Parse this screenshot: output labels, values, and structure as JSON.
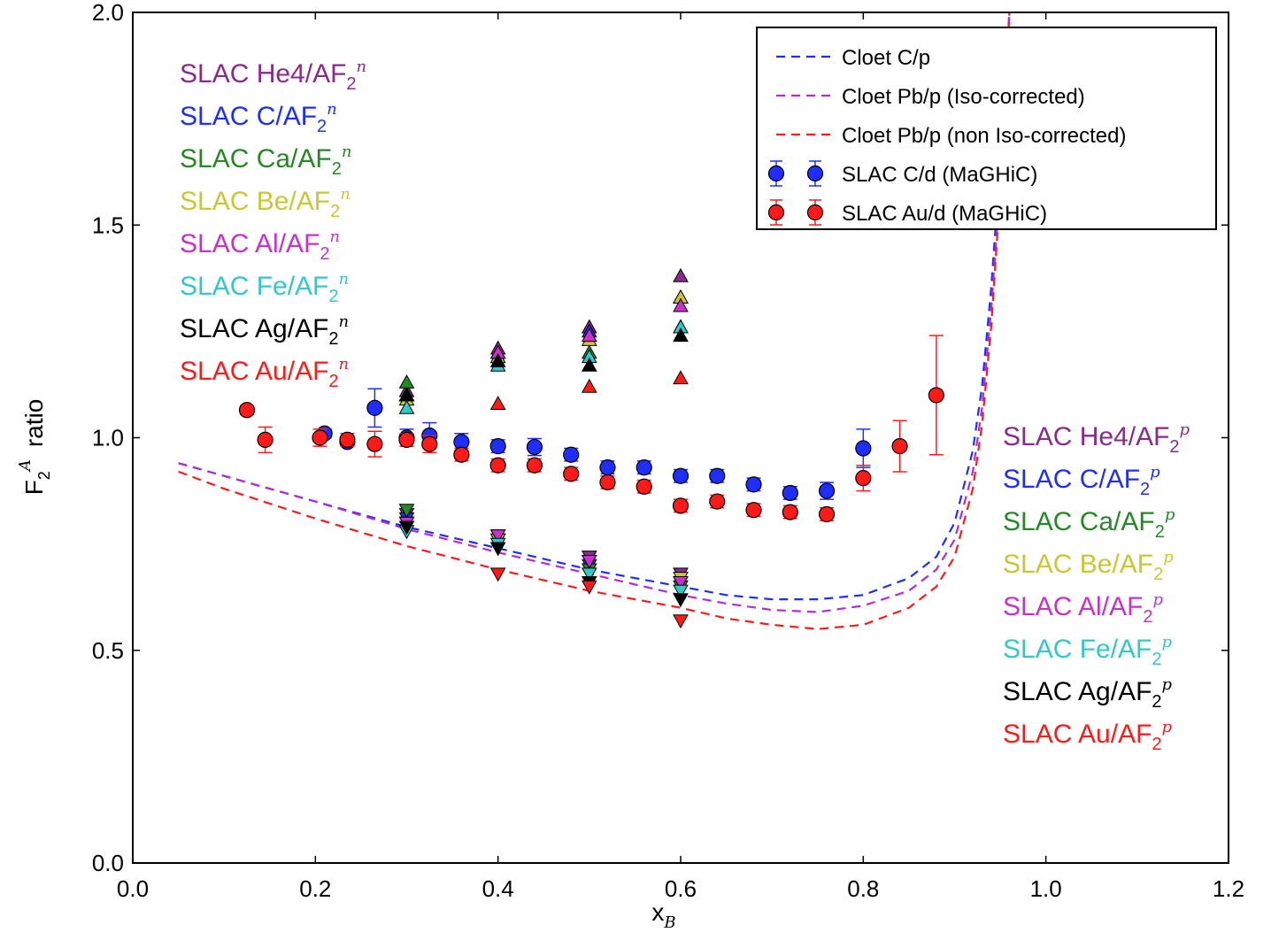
{
  "chart_data": {
    "type": "scatter",
    "xlabel": "x",
    "xlabel_sub": "B",
    "ylabel": "F",
    "ylabel_sub": "2",
    "ylabel_sup": "A",
    "ylabel_tail": "ratio",
    "xlim": [
      0.0,
      1.2
    ],
    "ylim": [
      0.0,
      2.0
    ],
    "xticks": [
      "0.0",
      "0.2",
      "0.4",
      "0.6",
      "0.8",
      "1.0",
      "1.2"
    ],
    "yticks": [
      "0.0",
      "0.5",
      "1.0",
      "1.5",
      "2.0"
    ],
    "grid": false,
    "legend_position": "top-right",
    "colors": {
      "blue": "#1f2dff",
      "red": "#ff1a1a",
      "magenta": "#b52ad6",
      "purple": "#8a2a8a",
      "green": "#238a23",
      "olive": "#c8c832",
      "pink": "#c832c8",
      "cyan": "#32c8c8",
      "black": "#000000"
    },
    "legend": [
      {
        "label": "Cloet C/p",
        "style": "dashed",
        "color": "#1f2dff"
      },
      {
        "label": "Cloet Pb/p (Iso-corrected)",
        "style": "dashed",
        "color": "#b52ad6"
      },
      {
        "label": "Cloet Pb/p (non Iso-corrected)",
        "style": "dashed",
        "color": "#ff1a1a"
      },
      {
        "label": "SLAC C/d (MaGHiC)",
        "style": "marker",
        "color": "#1f2dff"
      },
      {
        "label": "SLAC Au/d (MaGHiC)",
        "style": "marker",
        "color": "#ff1a1a"
      }
    ],
    "annotations_n": [
      {
        "text": "SLAC He4/AF",
        "sub": "2",
        "sup": "n",
        "color": "#8a2a8a"
      },
      {
        "text": "SLAC C/AF",
        "sub": "2",
        "sup": "n",
        "color": "#1f2dff"
      },
      {
        "text": "SLAC Ca/AF",
        "sub": "2",
        "sup": "n",
        "color": "#238a23"
      },
      {
        "text": "SLAC Be/AF",
        "sub": "2",
        "sup": "n",
        "color": "#c8c832"
      },
      {
        "text": "SLAC Al/AF",
        "sub": "2",
        "sup": "n",
        "color": "#c832c8"
      },
      {
        "text": "SLAC Fe/AF",
        "sub": "2",
        "sup": "n",
        "color": "#32c8c8"
      },
      {
        "text": "SLAC Ag/AF",
        "sub": "2",
        "sup": "n",
        "color": "#000000"
      },
      {
        "text": "SLAC Au/AF",
        "sub": "2",
        "sup": "n",
        "color": "#ff1a1a"
      }
    ],
    "annotations_p": [
      {
        "text": "SLAC He4/AF",
        "sub": "2",
        "sup": "p",
        "color": "#8a2a8a"
      },
      {
        "text": "SLAC C/AF",
        "sub": "2",
        "sup": "p",
        "color": "#1f2dff"
      },
      {
        "text": "SLAC Ca/AF",
        "sub": "2",
        "sup": "p",
        "color": "#238a23"
      },
      {
        "text": "SLAC Be/AF",
        "sub": "2",
        "sup": "p",
        "color": "#c8c832"
      },
      {
        "text": "SLAC Al/AF",
        "sub": "2",
        "sup": "p",
        "color": "#c832c8"
      },
      {
        "text": "SLAC Fe/AF",
        "sub": "2",
        "sup": "p",
        "color": "#32c8c8"
      },
      {
        "text": "SLAC Ag/AF",
        "sub": "2",
        "sup": "p",
        "color": "#000000"
      },
      {
        "text": "SLAC Au/AF",
        "sub": "2",
        "sup": "p",
        "color": "#ff1a1a"
      }
    ],
    "curves": [
      {
        "name": "Cloet C/p",
        "color": "#1f2dff",
        "points": [
          [
            0.05,
            0.94
          ],
          [
            0.1,
            0.91
          ],
          [
            0.2,
            0.85
          ],
          [
            0.3,
            0.79
          ],
          [
            0.4,
            0.74
          ],
          [
            0.5,
            0.69
          ],
          [
            0.6,
            0.65
          ],
          [
            0.65,
            0.63
          ],
          [
            0.7,
            0.62
          ],
          [
            0.75,
            0.62
          ],
          [
            0.8,
            0.63
          ],
          [
            0.85,
            0.67
          ],
          [
            0.88,
            0.72
          ],
          [
            0.9,
            0.8
          ],
          [
            0.92,
            0.97
          ],
          [
            0.93,
            1.12
          ],
          [
            0.94,
            1.35
          ],
          [
            0.95,
            1.65
          ],
          [
            0.96,
            2.0
          ]
        ]
      },
      {
        "name": "Cloet Pb/p (Iso-corrected)",
        "color": "#b52ad6",
        "points": [
          [
            0.05,
            0.94
          ],
          [
            0.1,
            0.91
          ],
          [
            0.2,
            0.85
          ],
          [
            0.3,
            0.785
          ],
          [
            0.4,
            0.73
          ],
          [
            0.5,
            0.68
          ],
          [
            0.6,
            0.63
          ],
          [
            0.65,
            0.61
          ],
          [
            0.7,
            0.595
          ],
          [
            0.75,
            0.59
          ],
          [
            0.8,
            0.605
          ],
          [
            0.85,
            0.64
          ],
          [
            0.88,
            0.69
          ],
          [
            0.9,
            0.76
          ],
          [
            0.92,
            0.92
          ],
          [
            0.93,
            1.07
          ],
          [
            0.94,
            1.3
          ],
          [
            0.95,
            1.6
          ],
          [
            0.96,
            2.0
          ]
        ]
      },
      {
        "name": "Cloet Pb/p (non Iso-corrected)",
        "color": "#ff1a1a",
        "points": [
          [
            0.05,
            0.92
          ],
          [
            0.1,
            0.88
          ],
          [
            0.2,
            0.81
          ],
          [
            0.3,
            0.745
          ],
          [
            0.4,
            0.69
          ],
          [
            0.5,
            0.64
          ],
          [
            0.6,
            0.6
          ],
          [
            0.65,
            0.575
          ],
          [
            0.7,
            0.56
          ],
          [
            0.75,
            0.55
          ],
          [
            0.8,
            0.56
          ],
          [
            0.85,
            0.6
          ],
          [
            0.88,
            0.65
          ],
          [
            0.9,
            0.72
          ],
          [
            0.92,
            0.88
          ],
          [
            0.93,
            1.03
          ],
          [
            0.94,
            1.26
          ],
          [
            0.95,
            1.58
          ],
          [
            0.96,
            2.0
          ]
        ]
      }
    ],
    "series": [
      {
        "name": "SLAC C/d (MaGHiC)",
        "color": "#1f2dff",
        "marker": "circle",
        "x": [
          0.21,
          0.235,
          0.265,
          0.3,
          0.325,
          0.36,
          0.4,
          0.44,
          0.48,
          0.52,
          0.56,
          0.6,
          0.64,
          0.68,
          0.72,
          0.76,
          0.8
        ],
        "y": [
          1.01,
          0.99,
          1.07,
          1.0,
          1.005,
          0.99,
          0.98,
          0.978,
          0.96,
          0.93,
          0.93,
          0.91,
          0.91,
          0.89,
          0.87,
          0.875,
          0.975
        ],
        "err": [
          0.01,
          0.01,
          0.045,
          0.02,
          0.03,
          0.02,
          0.015,
          0.02,
          0.015,
          0.015,
          0.015,
          0.015,
          0.015,
          0.015,
          0.015,
          0.02,
          0.045
        ]
      },
      {
        "name": "SLAC Au/d (MaGHiC)",
        "color": "#ff1a1a",
        "marker": "circle",
        "x": [
          0.125,
          0.145,
          0.205,
          0.235,
          0.265,
          0.3,
          0.325,
          0.36,
          0.4,
          0.44,
          0.48,
          0.52,
          0.56,
          0.6,
          0.64,
          0.68,
          0.72,
          0.76,
          0.8,
          0.84,
          0.88
        ],
        "y": [
          1.065,
          0.995,
          1.0,
          0.995,
          0.985,
          0.995,
          0.985,
          0.96,
          0.935,
          0.935,
          0.915,
          0.895,
          0.885,
          0.84,
          0.85,
          0.83,
          0.825,
          0.82,
          0.905,
          0.98,
          1.1
        ],
        "err": [
          0.01,
          0.03,
          0.02,
          0.015,
          0.03,
          0.015,
          0.02,
          0.015,
          0.015,
          0.015,
          0.015,
          0.015,
          0.015,
          0.015,
          0.015,
          0.015,
          0.015,
          0.015,
          0.03,
          0.06,
          0.14
        ]
      },
      {
        "name": "SLAC He4/AF2n",
        "color": "#8a2a8a",
        "marker": "triangle-up",
        "x": [
          0.3,
          0.4,
          0.5,
          0.6
        ],
        "y": [
          1.11,
          1.21,
          1.26,
          1.38
        ]
      },
      {
        "name": "SLAC C/AF2n",
        "color": "#1f2dff",
        "marker": "triangle-up",
        "x": [
          0.3,
          0.4,
          0.5,
          0.6
        ],
        "y": [
          1.1,
          1.2,
          1.25,
          1.33
        ]
      },
      {
        "name": "SLAC Ca/AF2n",
        "color": "#238a23",
        "marker": "triangle-up",
        "x": [
          0.3,
          0.4,
          0.5,
          0.6
        ],
        "y": [
          1.13,
          1.19,
          1.2,
          1.26
        ]
      },
      {
        "name": "SLAC Be/AF2n",
        "color": "#c8c832",
        "marker": "triangle-up",
        "x": [
          0.3,
          0.4,
          0.5,
          0.6
        ],
        "y": [
          1.09,
          1.19,
          1.23,
          1.33
        ]
      },
      {
        "name": "SLAC Al/AF2n",
        "color": "#c832c8",
        "marker": "triangle-up",
        "x": [
          0.3,
          0.4,
          0.5,
          0.6
        ],
        "y": [
          1.1,
          1.2,
          1.24,
          1.31
        ]
      },
      {
        "name": "SLAC Fe/AF2n",
        "color": "#32c8c8",
        "marker": "triangle-up",
        "x": [
          0.3,
          0.4,
          0.5,
          0.6
        ],
        "y": [
          1.07,
          1.17,
          1.19,
          1.26
        ]
      },
      {
        "name": "SLAC Ag/AF2n",
        "color": "#000000",
        "marker": "triangle-up",
        "x": [
          0.3,
          0.4,
          0.5,
          0.6
        ],
        "y": [
          1.1,
          1.18,
          1.17,
          1.24
        ]
      },
      {
        "name": "SLAC Au/AF2n",
        "color": "#ff1a1a",
        "marker": "triangle-up",
        "x": [
          0.4,
          0.5,
          0.6
        ],
        "y": [
          1.08,
          1.12,
          1.14
        ]
      },
      {
        "name": "SLAC He4/AF2p",
        "color": "#8a2a8a",
        "marker": "triangle-down",
        "x": [
          0.3,
          0.4,
          0.5,
          0.6
        ],
        "y": [
          0.82,
          0.77,
          0.72,
          0.68
        ]
      },
      {
        "name": "SLAC C/AF2p",
        "color": "#1f2dff",
        "marker": "triangle-down",
        "x": [
          0.3,
          0.4,
          0.5,
          0.6
        ],
        "y": [
          0.81,
          0.76,
          0.7,
          0.66
        ]
      },
      {
        "name": "SLAC Ca/AF2p",
        "color": "#238a23",
        "marker": "triangle-down",
        "x": [
          0.3,
          0.4,
          0.5,
          0.6
        ],
        "y": [
          0.83,
          0.76,
          0.69,
          0.65
        ]
      },
      {
        "name": "SLAC Be/AF2p",
        "color": "#c8c832",
        "marker": "triangle-down",
        "x": [
          0.3,
          0.4,
          0.5,
          0.6
        ],
        "y": [
          0.8,
          0.76,
          0.71,
          0.67
        ]
      },
      {
        "name": "SLAC Al/AF2p",
        "color": "#c832c8",
        "marker": "triangle-down",
        "x": [
          0.3,
          0.4,
          0.5,
          0.6
        ],
        "y": [
          0.8,
          0.77,
          0.71,
          0.66
        ]
      },
      {
        "name": "SLAC Fe/AF2p",
        "color": "#32c8c8",
        "marker": "triangle-down",
        "x": [
          0.3,
          0.4,
          0.5,
          0.6
        ],
        "y": [
          0.78,
          0.75,
          0.68,
          0.64
        ]
      },
      {
        "name": "SLAC Ag/AF2p",
        "color": "#000000",
        "marker": "triangle-down",
        "x": [
          0.3,
          0.4,
          0.5,
          0.6
        ],
        "y": [
          0.79,
          0.74,
          0.66,
          0.62
        ]
      },
      {
        "name": "SLAC Au/AF2p",
        "color": "#ff1a1a",
        "marker": "triangle-down",
        "x": [
          0.4,
          0.5,
          0.6
        ],
        "y": [
          0.68,
          0.65,
          0.57
        ]
      }
    ]
  }
}
